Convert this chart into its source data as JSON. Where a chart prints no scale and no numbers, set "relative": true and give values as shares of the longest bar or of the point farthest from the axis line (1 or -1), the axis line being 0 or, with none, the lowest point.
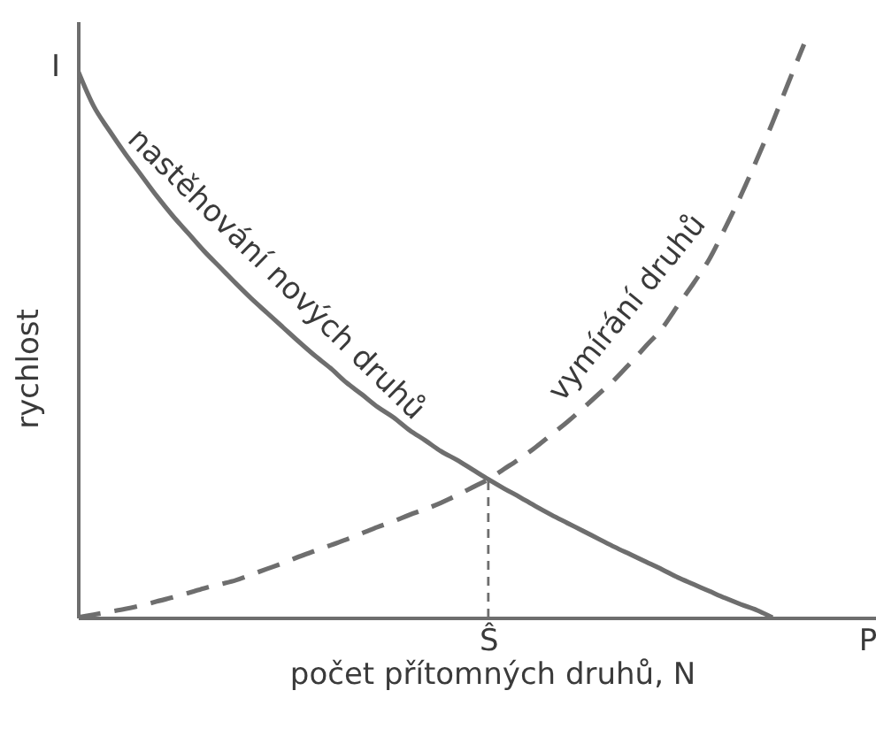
{
  "chart_data": {
    "type": "line",
    "relative": true,
    "xlabel": "počet přítomných druhů, N",
    "ylabel": "rychlost",
    "categories": [
      null,
      null,
      null,
      null,
      null,
      null,
      null,
      null,
      null,
      null,
      null,
      null,
      null,
      null,
      null,
      null,
      null,
      null,
      null,
      null,
      null,
      null,
      null,
      null,
      null,
      null,
      "Ŝ",
      null,
      null,
      null,
      null,
      null,
      null,
      null,
      null,
      null,
      null,
      null,
      null,
      null,
      null,
      null,
      null,
      null,
      null,
      null,
      null,
      null,
      null,
      null,
      "P"
    ],
    "annotations": [
      "I"
    ],
    "ref_lines": [
      {
        "axis": "x",
        "value": "Ŝ",
        "color": "#6e6e6e",
        "line_style": "dashed"
      }
    ],
    "series": [
      {
        "name": "nastěhování nových druhů",
        "color": "#6e6e6e",
        "line_style": "solid",
        "values": [
          0.954,
          0.892,
          0.849,
          0.809,
          0.772,
          0.735,
          0.701,
          0.67,
          0.639,
          0.611,
          0.583,
          0.556,
          0.531,
          0.506,
          0.481,
          0.457,
          0.435,
          0.41,
          0.389,
          0.367,
          0.349,
          0.327,
          0.309,
          0.29,
          0.275,
          0.258,
          0.241,
          0.225,
          0.21,
          0.194,
          0.179,
          0.165,
          0.151,
          0.137,
          0.123,
          0.11,
          0.097,
          0.084,
          0.07,
          0.058,
          0.046,
          0.034,
          0.023,
          0.013,
          0,
          null,
          null,
          null,
          null,
          null,
          null
        ]
      },
      {
        "name": "vymírání druhů",
        "color": "#6e6e6e",
        "line_style": "dashed",
        "values": [
          0,
          0.005,
          0.01,
          0.015,
          0.021,
          0.028,
          0.035,
          0.043,
          0.051,
          0.058,
          0.065,
          0.075,
          0.085,
          0.095,
          0.106,
          0.116,
          0.126,
          0.136,
          0.147,
          0.158,
          0.168,
          0.179,
          0.189,
          0.2,
          0.213,
          0.227,
          0.241,
          0.259,
          0.277,
          0.297,
          0.319,
          0.341,
          0.365,
          0.39,
          0.415,
          0.444,
          0.474,
          0.504,
          0.544,
          0.583,
          0.625,
          0.679,
          0.736,
          0.798,
          0.863,
          0.932,
          1,
          null,
          null,
          null,
          null
        ]
      }
    ]
  }
}
